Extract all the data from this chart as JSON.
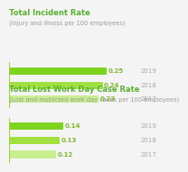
{
  "chart1_title": "Total Incident Rate",
  "chart1_subtitle": "(Injury and illness per 100 employees)",
  "chart1_categories": [
    "2019",
    "2018",
    "2017"
  ],
  "chart1_values": [
    0.25,
    0.24,
    0.23
  ],
  "chart1_colors": [
    "#7ed321",
    "#a0e040",
    "#c8ef90"
  ],
  "chart2_title": "Total Lost Work Day Case Rate",
  "chart2_subtitle": "(Lost and restricted work day cases per 100 employees)",
  "chart2_categories": [
    "2019",
    "2018",
    "2017"
  ],
  "chart2_values": [
    0.14,
    0.13,
    0.12
  ],
  "chart2_colors": [
    "#7ed321",
    "#a0e040",
    "#c8ef90"
  ],
  "title_color": "#5ab031",
  "subtitle_color": "#999999",
  "label_color": "#7eb82a",
  "year_color": "#aaaaaa",
  "bar_label_fontsize": 5.0,
  "year_label_fontsize": 5.0,
  "title_fontsize": 6.0,
  "subtitle_fontsize": 4.8,
  "accent_line_color": "#a0d040",
  "bg_color": "#f4f4f4",
  "xlim": [
    0,
    0.3
  ]
}
